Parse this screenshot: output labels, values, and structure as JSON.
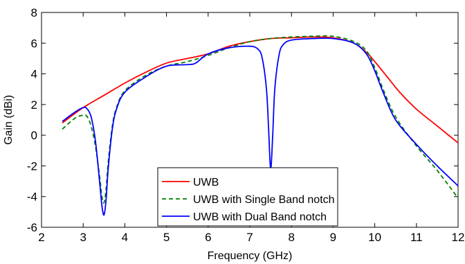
{
  "chart_data": {
    "type": "line",
    "title": "",
    "xlabel": "Frequency (GHz)",
    "ylabel": "Gain (dBi)",
    "xlim": [
      2,
      12
    ],
    "ylim": [
      -6,
      8
    ],
    "xticks": [
      2,
      3,
      4,
      5,
      6,
      7,
      8,
      9,
      10,
      11,
      12
    ],
    "yticks": [
      -6,
      -4,
      -2,
      0,
      2,
      4,
      6,
      8
    ],
    "grid": false,
    "legend_position": "bottom-center",
    "series": [
      {
        "name": "UWB",
        "color": "#ff0000",
        "dash": "solid",
        "x": [
          2.5,
          3.0,
          3.5,
          4.0,
          4.5,
          5.0,
          5.5,
          6.0,
          6.5,
          7.0,
          7.5,
          8.0,
          8.5,
          9.0,
          9.5,
          9.8,
          10.0,
          10.3,
          10.6,
          11.0,
          11.5,
          12.0
        ],
        "y": [
          0.8,
          1.8,
          2.6,
          3.4,
          4.1,
          4.7,
          5.0,
          5.3,
          5.8,
          6.1,
          6.3,
          6.35,
          6.4,
          6.35,
          6.0,
          5.4,
          4.8,
          3.8,
          2.8,
          1.7,
          0.6,
          -0.5
        ]
      },
      {
        "name": "UWB with Single Band notch",
        "color": "#008000",
        "dash": "dashed",
        "x": [
          2.5,
          2.8,
          3.0,
          3.1,
          3.2,
          3.3,
          3.4,
          3.45,
          3.5,
          3.55,
          3.6,
          3.7,
          3.8,
          4.0,
          4.5,
          5.0,
          5.5,
          6.0,
          6.5,
          7.0,
          7.5,
          8.0,
          8.5,
          9.0,
          9.5,
          9.8,
          10.0,
          10.2,
          10.5,
          11.0,
          11.5,
          12.0
        ],
        "y": [
          0.4,
          1.1,
          1.3,
          1.2,
          0.5,
          -0.8,
          -2.8,
          -4.0,
          -4.4,
          -3.5,
          -1.8,
          0.6,
          1.8,
          2.9,
          3.9,
          4.5,
          4.8,
          5.2,
          5.7,
          6.1,
          6.3,
          6.4,
          6.45,
          6.45,
          6.1,
          5.5,
          4.4,
          3.0,
          1.2,
          -0.7,
          -2.3,
          -4.1
        ]
      },
      {
        "name": "UWB with Dual Band notch",
        "color": "#0000ff",
        "dash": "solid",
        "x": [
          2.5,
          2.8,
          3.0,
          3.1,
          3.2,
          3.3,
          3.4,
          3.45,
          3.5,
          3.55,
          3.6,
          3.7,
          3.8,
          4.0,
          4.5,
          5.0,
          5.5,
          5.7,
          6.0,
          6.5,
          7.0,
          7.2,
          7.3,
          7.4,
          7.45,
          7.5,
          7.55,
          7.6,
          7.7,
          7.8,
          8.0,
          8.5,
          9.0,
          9.5,
          9.8,
          10.0,
          10.2,
          10.5,
          11.0,
          11.5,
          12.0
        ],
        "y": [
          0.9,
          1.5,
          1.8,
          1.7,
          1.1,
          -0.5,
          -3.2,
          -4.6,
          -5.2,
          -4.2,
          -2.2,
          0.4,
          1.7,
          2.8,
          3.8,
          4.5,
          4.6,
          4.7,
          5.3,
          5.7,
          5.8,
          5.6,
          5.0,
          3.0,
          0.5,
          -2.2,
          0.0,
          3.0,
          5.2,
          5.9,
          6.2,
          6.3,
          6.3,
          6.0,
          5.3,
          4.2,
          2.8,
          1.0,
          -0.6,
          -2.0,
          -3.3
        ]
      }
    ]
  }
}
